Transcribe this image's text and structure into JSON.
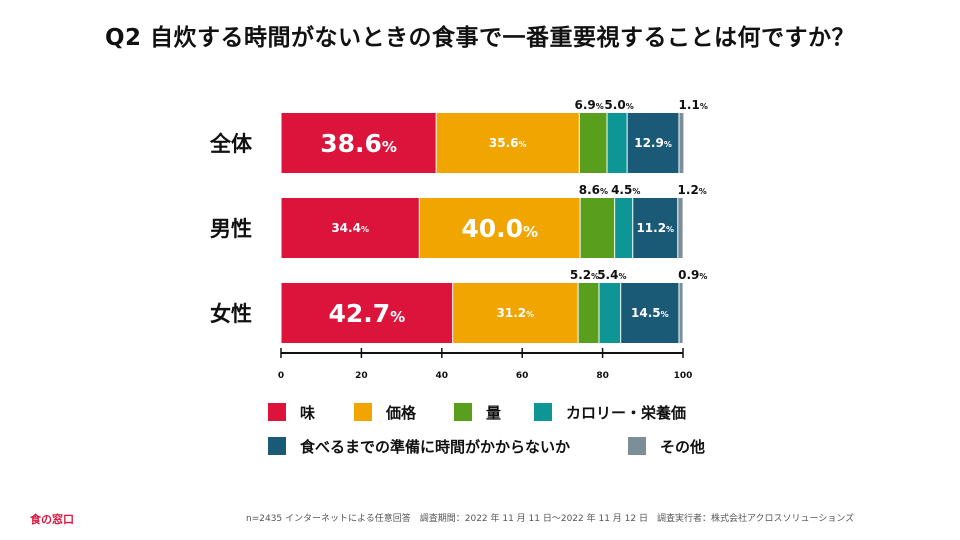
{
  "title": "Q2 自炊する時間がないときの食事で一番重要視することは何ですか？",
  "chart_data": {
    "type": "bar",
    "orientation": "horizontal",
    "stacked": true,
    "categories": [
      "全体",
      "男性",
      "女性"
    ],
    "series": [
      {
        "name": "味",
        "color": "#dc143c",
        "values": [
          38.6,
          34.4,
          42.7
        ]
      },
      {
        "name": "価格",
        "color": "#f0a500",
        "values": [
          35.6,
          40.0,
          31.2
        ]
      },
      {
        "name": "量",
        "color": "#5a9e1e",
        "values": [
          6.9,
          8.6,
          5.2
        ]
      },
      {
        "name": "カロリー・栄養価",
        "color": "#0e9696",
        "values": [
          5.0,
          4.5,
          5.4
        ]
      },
      {
        "name": "食べるまでの準備に時間がかからないか",
        "color": "#1a5a76",
        "values": [
          12.9,
          11.2,
          14.5
        ]
      },
      {
        "name": "その他",
        "color": "#7c8e96",
        "values": [
          1.1,
          1.2,
          0.9
        ]
      }
    ],
    "value_labels": [
      [
        "38.6",
        "35.6",
        "6.9",
        "5.0",
        "12.9",
        "1.1"
      ],
      [
        "34.4",
        "40.0",
        "8.6",
        "4.5",
        "11.2",
        "1.2"
      ],
      [
        "42.7",
        "31.2",
        "5.2",
        "5.4",
        "14.5",
        "0.9"
      ]
    ],
    "unit": "%",
    "xlim": [
      0,
      100
    ],
    "xticks": [
      "0",
      "20",
      "40",
      "60",
      "80",
      "100"
    ],
    "legend_rows": [
      [
        0,
        1,
        2,
        3
      ],
      [
        4,
        5
      ]
    ]
  },
  "logo": "食の窓口",
  "footnote": "n=2435 インターネットによる任意回答　調査期間：2022 年 11 月 11 日〜2022 年 11 月 12 日　調査実行者：株式会社アクロスソリューションズ"
}
